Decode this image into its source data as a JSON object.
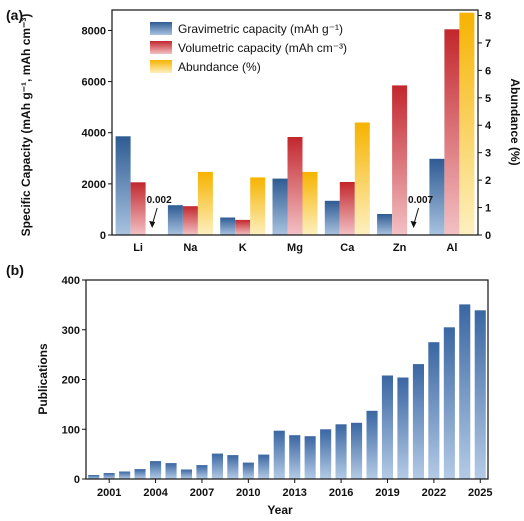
{
  "colors": {
    "grav_top": "#2e5b93",
    "grav_bottom": "#a9c3e0",
    "vol_top": "#c2272d",
    "vol_bottom": "#f3c1c4",
    "abund_top": "#f6b300",
    "abund_bottom": "#fdf0c0",
    "pub_top": "#3a66a2",
    "pub_bottom": "#b4cbe6"
  },
  "chart_data": [
    {
      "panel_label": "(a)",
      "type": "bar",
      "categories": [
        "Li",
        "Na",
        "K",
        "Mg",
        "Ca",
        "Zn",
        "Al"
      ],
      "series": [
        {
          "name": "Gravimetric capacity (mAh g⁻¹)",
          "axis": "left",
          "values": [
            3860,
            1166,
            685,
            2205,
            1337,
            820,
            2980
          ]
        },
        {
          "name": "Volumetric capacity (mAh cm⁻³)",
          "axis": "left",
          "values": [
            2062,
            1128,
            591,
            3833,
            2073,
            5851,
            8046
          ]
        },
        {
          "name": "Abundance (%)",
          "axis": "right",
          "values": [
            0.002,
            2.3,
            2.1,
            2.3,
            4.1,
            0.007,
            8.1
          ]
        }
      ],
      "ylabel": "Specific Capacity (mAh g⁻¹, mAh cm⁻³)",
      "ylabel_right": "Abundance (%)",
      "ylim": [
        0,
        8800
      ],
      "yticks": [
        0,
        2000,
        4000,
        6000,
        8000
      ],
      "ylim_right": [
        0,
        8.2
      ],
      "yticks_right": [
        0,
        1,
        2,
        3,
        4,
        5,
        6,
        7,
        8
      ],
      "legend_position": "top-left",
      "annotations": [
        {
          "text": "0.002",
          "category": "Li"
        },
        {
          "text": "0.007",
          "category": "Zn"
        }
      ]
    },
    {
      "panel_label": "(b)",
      "type": "bar",
      "x": [
        2000,
        2001,
        2002,
        2003,
        2004,
        2005,
        2006,
        2007,
        2008,
        2009,
        2010,
        2011,
        2012,
        2013,
        2014,
        2015,
        2016,
        2017,
        2018,
        2019,
        2020,
        2021,
        2022,
        2023,
        2024,
        2025
      ],
      "values": [
        8,
        12,
        15,
        20,
        36,
        32,
        19,
        28,
        51,
        48,
        33,
        49,
        97,
        88,
        86,
        100,
        110,
        113,
        137,
        208,
        204,
        231,
        275,
        305,
        351,
        339
      ],
      "xticks": [
        "2001",
        "2004",
        "2007",
        "2010",
        "2013",
        "2016",
        "2019",
        "2022",
        "2025"
      ],
      "xlabel": "Year",
      "ylabel": "Publications",
      "ylim": [
        0,
        400
      ],
      "yticks": [
        0,
        100,
        200,
        300,
        400
      ]
    }
  ]
}
